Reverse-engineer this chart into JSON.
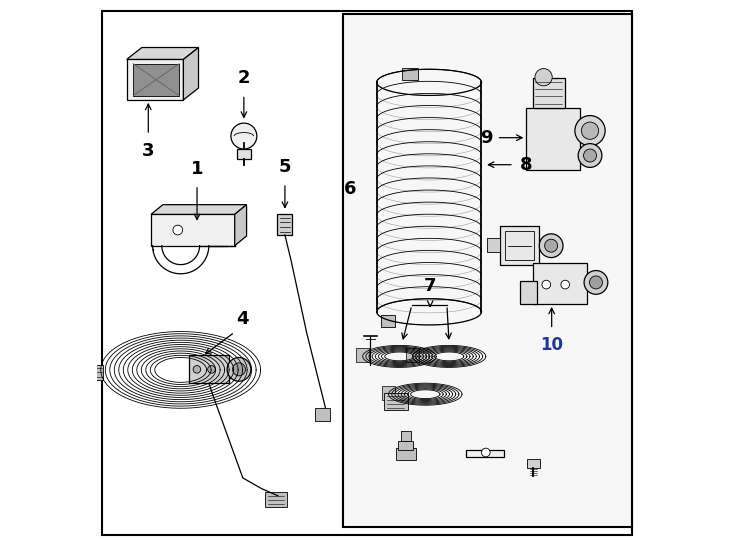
{
  "bg_color": "#ffffff",
  "line_color": "#000000",
  "gray_fill": "#e8e8e8",
  "light_gray": "#f0f0f0",
  "figsize": [
    7.34,
    5.4
  ],
  "dpi": 100
}
